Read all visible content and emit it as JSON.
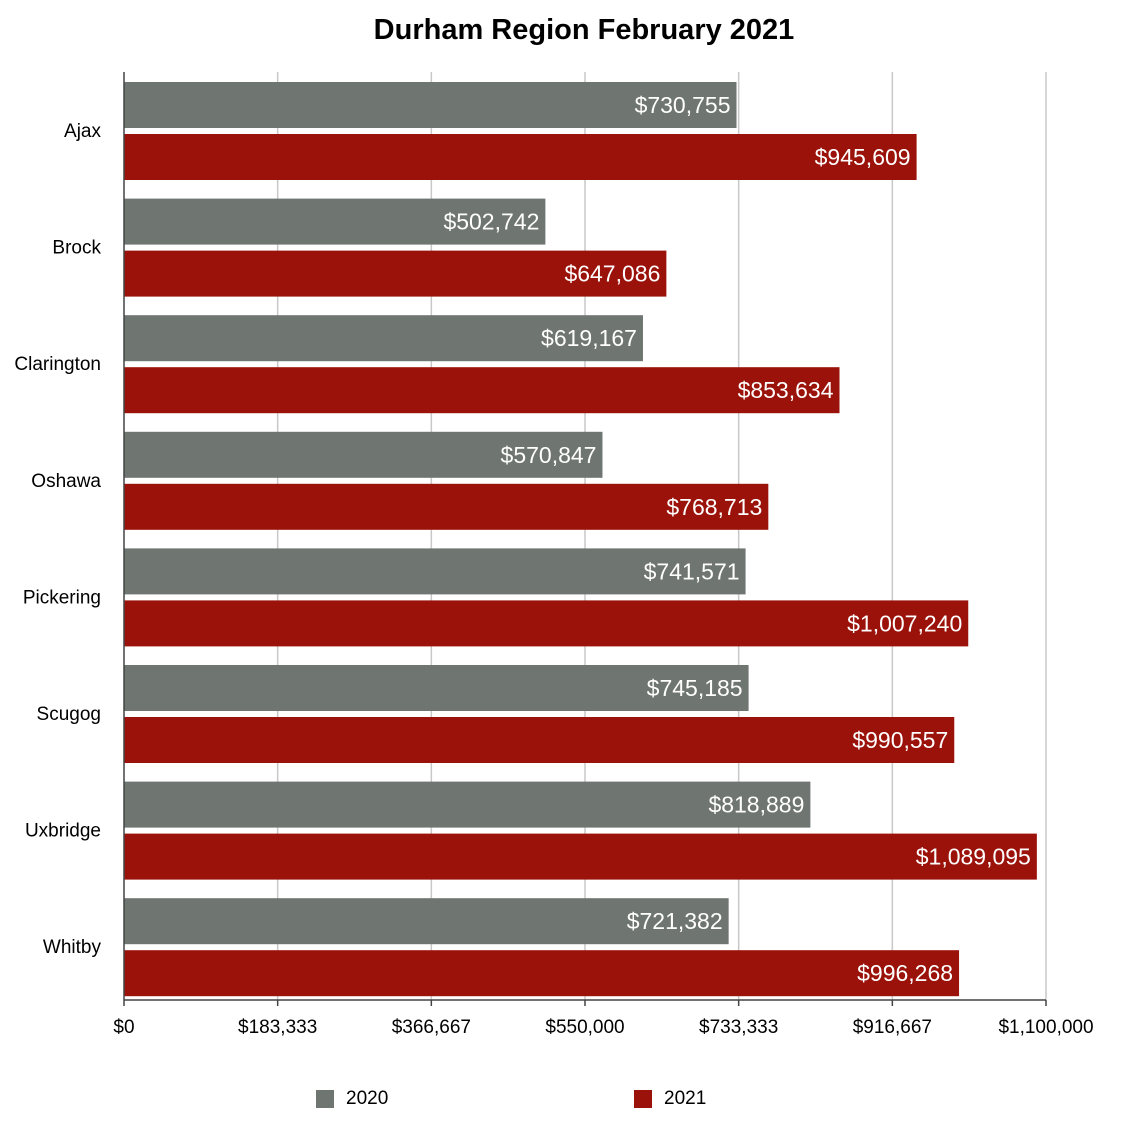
{
  "chart_data": {
    "type": "bar",
    "orientation": "horizontal",
    "title": "Durham Region February 2021",
    "categories": [
      "Ajax",
      "Brock",
      "Clarington",
      "Oshawa",
      "Pickering",
      "Scugog",
      "Uxbridge",
      "Whitby"
    ],
    "series": [
      {
        "name": "2020",
        "color": "#6f7571",
        "values": [
          730755,
          502742,
          619167,
          570847,
          741571,
          745185,
          818889,
          721382
        ],
        "labels": [
          "$730,755",
          "$502,742",
          "$619,167",
          "$570,847",
          "$741,571",
          "$745,185",
          "$818,889",
          "$721,382"
        ]
      },
      {
        "name": "2021",
        "color": "#9a1209",
        "values": [
          945609,
          647086,
          853634,
          768713,
          1007240,
          990557,
          1089095,
          996268
        ],
        "labels": [
          "$945,609",
          "$647,086",
          "$853,634",
          "$768,713",
          "$1,007,240",
          "$990,557",
          "$1,089,095",
          "$996,268"
        ]
      }
    ],
    "xlim": [
      0,
      1100000
    ],
    "x_ticks": [
      0,
      183333,
      366667,
      550000,
      733333,
      916667,
      1100000
    ],
    "x_tick_labels": [
      "$0",
      "$183,333",
      "$366,667",
      "$550,000",
      "$733,333",
      "$916,667",
      "$1,100,000"
    ],
    "grid": true,
    "legend_position": "bottom"
  }
}
